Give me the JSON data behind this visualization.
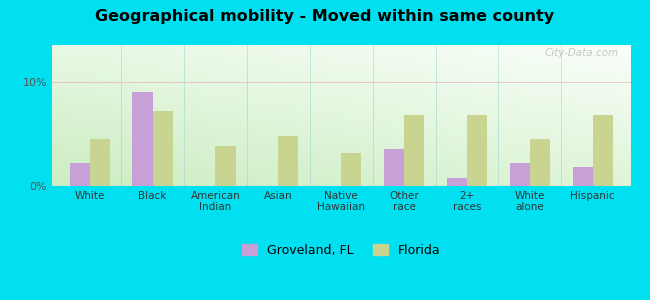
{
  "title": "Geographical mobility - Moved within same county",
  "categories": [
    "White",
    "Black",
    "American\nIndian",
    "Asian",
    "Native\nHawaiian",
    "Other\nrace",
    "2+\nraces",
    "White\nalone",
    "Hispanic"
  ],
  "groveland_values": [
    2.2,
    9.0,
    0.0,
    0.0,
    0.0,
    3.5,
    0.8,
    2.2,
    1.8
  ],
  "florida_values": [
    4.5,
    7.2,
    3.8,
    4.8,
    3.2,
    6.8,
    6.8,
    4.5,
    6.8
  ],
  "groveland_color": "#c8a0d8",
  "florida_color": "#c8d490",
  "ylim": [
    0,
    13.5
  ],
  "ytick_labels": [
    "0%",
    "10%"
  ],
  "ytick_values": [
    0,
    10
  ],
  "background_outer": "#00e0f0",
  "watermark": "City-Data.com",
  "legend_groveland": "Groveland, FL",
  "legend_florida": "Florida",
  "bar_width": 0.32
}
